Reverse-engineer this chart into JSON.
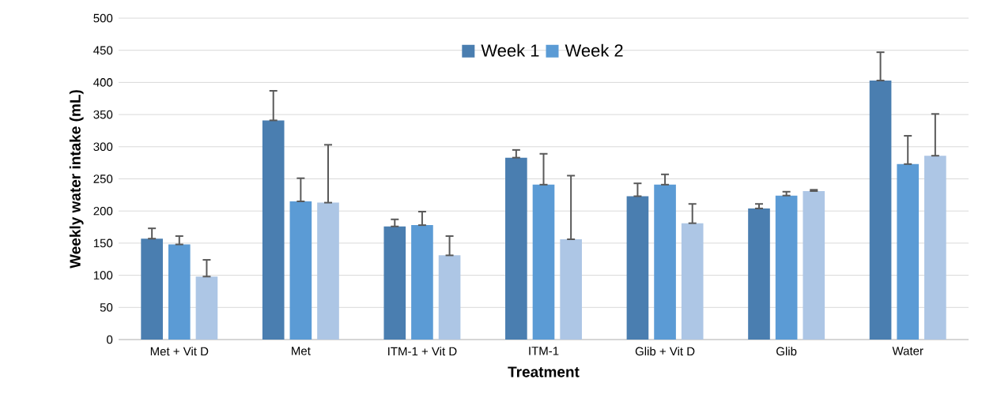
{
  "chart_data": {
    "type": "bar",
    "xlabel": "Treatment",
    "ylabel": "Weekly water intake (mL)",
    "categories": [
      "Met + Vit D",
      "Met",
      "ITM-1 + Vit D",
      "ITM-1",
      "Glib + Vit D",
      "Glib",
      "Water"
    ],
    "series": [
      {
        "name": "Week 1",
        "color": "#4a7eb0",
        "values": [
          157,
          341,
          176,
          283,
          223,
          204,
          403
        ],
        "errors": [
          [
            157,
            173
          ],
          [
            341,
            387
          ],
          [
            176,
            187
          ],
          [
            283,
            295
          ],
          [
            223,
            243
          ],
          [
            204,
            211
          ],
          [
            403,
            447
          ]
        ]
      },
      {
        "name": "Week 2",
        "color": "#5b9bd5",
        "values": [
          148,
          215,
          178,
          241,
          241,
          224,
          273
        ],
        "errors": [
          [
            148,
            161
          ],
          [
            215,
            251
          ],
          [
            178,
            199
          ],
          [
            241,
            289
          ],
          [
            241,
            257
          ],
          [
            224,
            230
          ],
          [
            273,
            317
          ]
        ]
      },
      {
        "color": "#adc6e5",
        "values": [
          98,
          213,
          131,
          156,
          181,
          231,
          286
        ],
        "errors": [
          [
            98,
            124
          ],
          [
            213,
            303
          ],
          [
            131,
            161
          ],
          [
            156,
            255
          ],
          [
            181,
            211
          ],
          [
            231,
            233
          ],
          [
            286,
            351
          ]
        ]
      }
    ],
    "ylim": [
      0,
      500
    ],
    "yticks": [
      0,
      50,
      100,
      150,
      200,
      250,
      300,
      350,
      400,
      450,
      500
    ],
    "grid": "y",
    "legend": "top"
  }
}
